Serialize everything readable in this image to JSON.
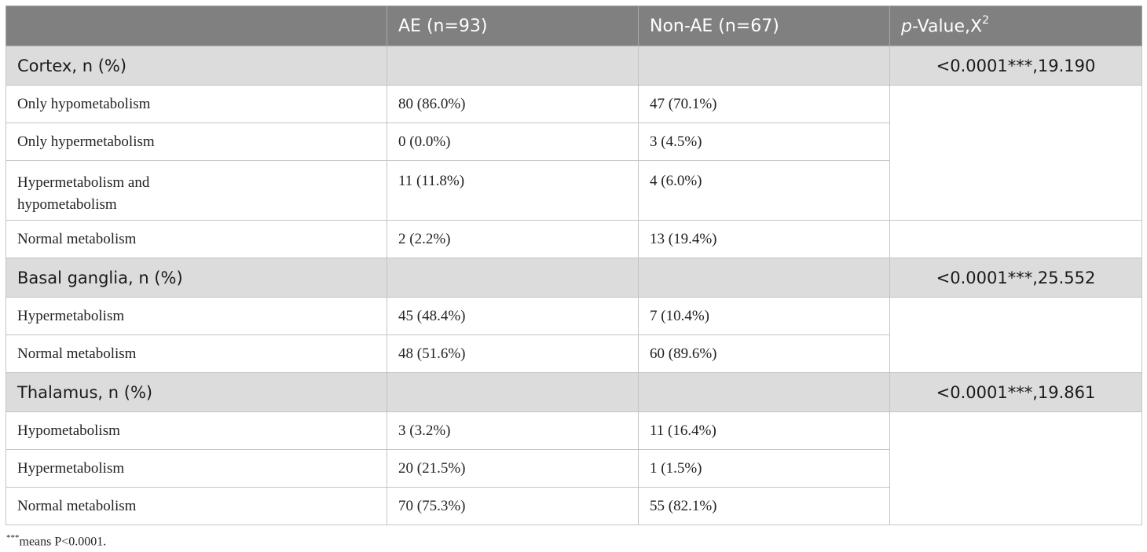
{
  "table": {
    "headers": {
      "col1": "",
      "col2": "AE (n=93)",
      "col3": "Non-AE (n=67)",
      "col4_italic": "p",
      "col4_rest": "-Value,X",
      "col4_sup": "2"
    },
    "sections": [
      {
        "label": "Cortex, n (%)",
        "pvalue": "<0.0001***,19.190",
        "rows": [
          {
            "label": "Only hypometabolism",
            "ae": "80 (86.0%)",
            "non_ae": "47 (70.1%)"
          },
          {
            "label": "Only hypermetabolism",
            "ae": "0 (0.0%)",
            "non_ae": "3 (4.5%)"
          },
          {
            "label": "Hypermetabolism and hypometabolism",
            "ae": "11 (11.8%)",
            "non_ae": "4 (6.0%)"
          },
          {
            "label": "Normal metabolism",
            "ae": "2 (2.2%)",
            "non_ae": "13 (19.4%)"
          }
        ]
      },
      {
        "label": "Basal ganglia, n (%)",
        "pvalue": "<0.0001***,25.552",
        "rows": [
          {
            "label": "Hypermetabolism",
            "ae": "45 (48.4%)",
            "non_ae": "7 (10.4%)"
          },
          {
            "label": "Normal metabolism",
            "ae": "48 (51.6%)",
            "non_ae": "60 (89.6%)"
          }
        ]
      },
      {
        "label": "Thalamus, n (%)",
        "pvalue": "<0.0001***,19.861",
        "rows": [
          {
            "label": "Hypometabolism",
            "ae": "3 (3.2%)",
            "non_ae": "11 (16.4%)"
          },
          {
            "label": "Hypermetabolism",
            "ae": "20 (21.5%)",
            "non_ae": "1 (1.5%)"
          },
          {
            "label": "Normal metabolism",
            "ae": "70 (75.3%)",
            "non_ae": "55 (82.1%)"
          }
        ]
      }
    ]
  },
  "footnote": {
    "sup": "***",
    "text": "means P<0.0001."
  },
  "colors": {
    "header_bg": "#808080",
    "section_bg": "#dcdcdc",
    "border": "#c4c4c4"
  }
}
